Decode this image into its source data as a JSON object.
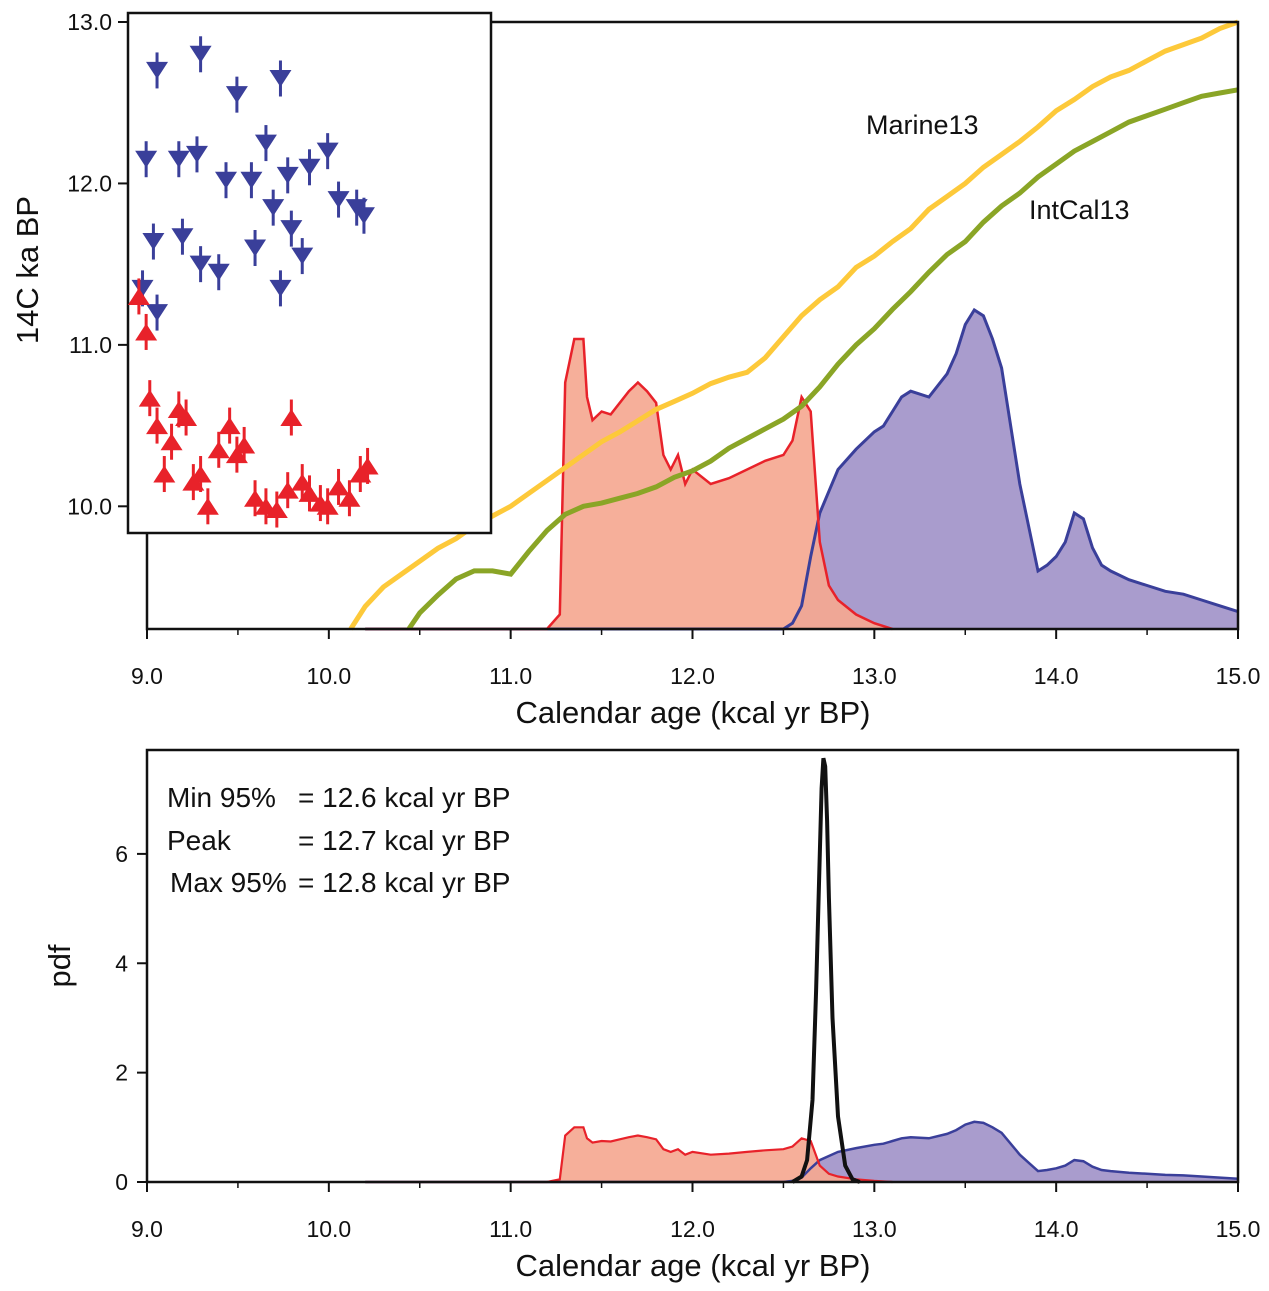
{
  "colors": {
    "marine": "#fdc93a",
    "intcal": "#8aa526",
    "red_line": "#e8222a",
    "red_fill": "#f5a891",
    "blue_line": "#3a3f9a",
    "blue_fill": "#a99ccd",
    "overlap_fill": "#9569ac",
    "black_pdf": "#111111"
  },
  "chart_data": [
    {
      "type": "line",
      "panel": "top",
      "xlabel": "Calendar age (kcal yr BP)",
      "ylabel": "14C ka BP",
      "xlim": [
        9.0,
        15.0
      ],
      "ylim": [
        9.24,
        13.0
      ],
      "x_ticks": [
        "9.0",
        "10.0",
        "11.0",
        "12.0",
        "13.0",
        "14.0",
        "15.0"
      ],
      "y_ticks": [
        "10.0",
        "11.0",
        "12.0",
        "13.0"
      ],
      "curve_labels": {
        "marine": "Marine13",
        "intcal": "IntCal13"
      },
      "series": [
        {
          "name": "Marine13",
          "x": [
            10.12,
            10.2,
            10.3,
            10.4,
            10.5,
            10.6,
            10.7,
            10.8,
            10.9,
            11.0,
            11.1,
            11.2,
            11.3,
            11.4,
            11.5,
            11.6,
            11.7,
            11.8,
            11.9,
            12.0,
            12.1,
            12.2,
            12.3,
            12.4,
            12.5,
            12.6,
            12.7,
            12.8,
            12.9,
            13.0,
            13.1,
            13.2,
            13.3,
            13.4,
            13.5,
            13.6,
            13.7,
            13.8,
            13.9,
            14.0,
            14.1,
            14.2,
            14.3,
            14.4,
            14.5,
            14.6,
            14.7,
            14.8,
            14.9,
            15.0
          ],
          "y": [
            9.24,
            9.38,
            9.5,
            9.58,
            9.66,
            9.74,
            9.8,
            9.88,
            9.94,
            10.0,
            10.08,
            10.16,
            10.24,
            10.32,
            10.4,
            10.46,
            10.53,
            10.6,
            10.65,
            10.7,
            10.76,
            10.8,
            10.83,
            10.92,
            11.05,
            11.18,
            11.28,
            11.36,
            11.48,
            11.55,
            11.64,
            11.72,
            11.84,
            11.92,
            12.0,
            12.1,
            12.18,
            12.26,
            12.35,
            12.45,
            12.52,
            12.6,
            12.66,
            12.7,
            12.76,
            12.82,
            12.86,
            12.9,
            12.96,
            13.0
          ]
        },
        {
          "name": "IntCal13",
          "x": [
            10.44,
            10.5,
            10.6,
            10.7,
            10.8,
            10.9,
            11.0,
            11.1,
            11.2,
            11.3,
            11.4,
            11.5,
            11.6,
            11.7,
            11.8,
            11.9,
            12.0,
            12.1,
            12.2,
            12.3,
            12.4,
            12.5,
            12.6,
            12.7,
            12.8,
            12.9,
            13.0,
            13.1,
            13.2,
            13.3,
            13.4,
            13.5,
            13.6,
            13.7,
            13.8,
            13.9,
            14.0,
            14.1,
            14.2,
            14.3,
            14.4,
            14.5,
            14.6,
            14.7,
            14.8,
            14.9,
            15.0
          ],
          "y": [
            9.24,
            9.34,
            9.45,
            9.55,
            9.6,
            9.6,
            9.58,
            9.72,
            9.85,
            9.95,
            10.0,
            10.02,
            10.05,
            10.08,
            10.12,
            10.18,
            10.22,
            10.28,
            10.36,
            10.42,
            10.48,
            10.54,
            10.62,
            10.74,
            10.88,
            11.0,
            11.1,
            11.22,
            11.33,
            11.45,
            11.56,
            11.64,
            11.76,
            11.86,
            11.94,
            12.04,
            12.12,
            12.2,
            12.26,
            12.32,
            12.38,
            12.42,
            12.46,
            12.5,
            12.54,
            12.56,
            12.58
          ]
        }
      ],
      "red_pdf": {
        "x": [
          10.2,
          11.2,
          11.27,
          11.3,
          11.35,
          11.4,
          11.42,
          11.45,
          11.5,
          11.55,
          11.6,
          11.65,
          11.7,
          11.75,
          11.8,
          11.84,
          11.88,
          11.92,
          11.96,
          12.0,
          12.1,
          12.2,
          12.3,
          12.4,
          12.5,
          12.55,
          12.6,
          12.65,
          12.7,
          12.75,
          12.8,
          12.9,
          13.0,
          13.1
        ],
        "y": [
          0.0,
          0.0,
          0.05,
          0.85,
          1.0,
          1.0,
          0.8,
          0.72,
          0.75,
          0.74,
          0.78,
          0.82,
          0.85,
          0.82,
          0.78,
          0.6,
          0.55,
          0.6,
          0.5,
          0.55,
          0.5,
          0.52,
          0.55,
          0.58,
          0.6,
          0.65,
          0.8,
          0.75,
          0.3,
          0.15,
          0.1,
          0.05,
          0.02,
          0.0
        ]
      },
      "blue_pdf": {
        "x": [
          10.2,
          12.5,
          12.55,
          12.6,
          12.65,
          12.7,
          12.8,
          12.9,
          13.0,
          13.05,
          13.1,
          13.15,
          13.2,
          13.3,
          13.4,
          13.45,
          13.5,
          13.55,
          13.6,
          13.65,
          13.7,
          13.8,
          13.85,
          13.9,
          13.95,
          14.0,
          14.05,
          14.1,
          14.15,
          14.2,
          14.25,
          14.3,
          14.4,
          14.5,
          14.6,
          14.7,
          14.8,
          14.9,
          15.0
        ],
        "y": [
          0.0,
          0.0,
          0.02,
          0.08,
          0.25,
          0.4,
          0.55,
          0.62,
          0.68,
          0.7,
          0.75,
          0.8,
          0.82,
          0.8,
          0.88,
          0.95,
          1.05,
          1.1,
          1.08,
          1.0,
          0.9,
          0.5,
          0.35,
          0.2,
          0.22,
          0.25,
          0.3,
          0.4,
          0.38,
          0.28,
          0.22,
          0.2,
          0.17,
          0.15,
          0.13,
          0.12,
          0.1,
          0.08,
          0.06
        ]
      }
    },
    {
      "type": "scatter",
      "panel": "inset",
      "series": [
        {
          "name": "",
          "marker": "down-triangle",
          "points": [
            [
              0.08,
              12.7
            ],
            [
              0.2,
              12.8
            ],
            [
              0.3,
              12.55
            ],
            [
              0.42,
              12.65
            ],
            [
              0.05,
              12.15
            ],
            [
              0.14,
              12.15
            ],
            [
              0.19,
              12.18
            ],
            [
              0.27,
              12.02
            ],
            [
              0.34,
              12.02
            ],
            [
              0.38,
              12.25
            ],
            [
              0.44,
              12.05
            ],
            [
              0.5,
              12.1
            ],
            [
              0.55,
              12.2
            ],
            [
              0.58,
              11.9
            ],
            [
              0.63,
              11.85
            ],
            [
              0.65,
              11.8
            ],
            [
              0.07,
              11.64
            ],
            [
              0.15,
              11.67
            ],
            [
              0.2,
              11.5
            ],
            [
              0.25,
              11.45
            ],
            [
              0.35,
              11.6
            ],
            [
              0.4,
              11.85
            ],
            [
              0.45,
              11.72
            ],
            [
              0.42,
              11.35
            ],
            [
              0.48,
              11.55
            ],
            [
              0.04,
              11.35
            ],
            [
              0.08,
              11.2
            ]
          ]
        },
        {
          "name": "",
          "marker": "up-triangle",
          "points": [
            [
              0.03,
              11.3
            ],
            [
              0.05,
              11.08
            ],
            [
              0.06,
              10.67
            ],
            [
              0.08,
              10.5
            ],
            [
              0.1,
              10.2
            ],
            [
              0.12,
              10.4
            ],
            [
              0.14,
              10.6
            ],
            [
              0.16,
              10.55
            ],
            [
              0.18,
              10.15
            ],
            [
              0.2,
              10.2
            ],
            [
              0.22,
              10.0
            ],
            [
              0.25,
              10.35
            ],
            [
              0.28,
              10.5
            ],
            [
              0.3,
              10.32
            ],
            [
              0.32,
              10.38
            ],
            [
              0.35,
              10.05
            ],
            [
              0.38,
              10.0
            ],
            [
              0.41,
              9.98
            ],
            [
              0.44,
              10.1
            ],
            [
              0.45,
              10.55
            ],
            [
              0.48,
              10.15
            ],
            [
              0.5,
              10.08
            ],
            [
              0.53,
              10.02
            ],
            [
              0.55,
              10.0
            ],
            [
              0.58,
              10.12
            ],
            [
              0.61,
              10.05
            ],
            [
              0.64,
              10.2
            ],
            [
              0.66,
              10.25
            ]
          ]
        }
      ]
    },
    {
      "type": "area",
      "panel": "bottom",
      "xlabel": "Calendar age (kcal yr BP)",
      "ylabel": "pdf",
      "xlim": [
        9.0,
        15.0
      ],
      "ylim": [
        0,
        7.9
      ],
      "x_ticks": [
        "9.0",
        "10.0",
        "11.0",
        "12.0",
        "13.0",
        "14.0",
        "15.0"
      ],
      "y_ticks": [
        "0",
        "2",
        "4",
        "6"
      ],
      "annotation": {
        "lines": [
          {
            "label": "Min 95%",
            "value": "= 12.6  kcal yr BP"
          },
          {
            "label": "Peak",
            "value": "= 12.7  kcal yr BP"
          },
          {
            "label": "Max 95%",
            "value": "= 12.8  kcal yr BP"
          }
        ]
      },
      "black_pdf": {
        "x": [
          12.55,
          12.6,
          12.63,
          12.66,
          12.68,
          12.7,
          12.71,
          12.72,
          12.73,
          12.74,
          12.75,
          12.77,
          12.8,
          12.84,
          12.88,
          12.92
        ],
        "y": [
          0.0,
          0.1,
          0.4,
          1.5,
          3.5,
          6.0,
          7.2,
          7.75,
          7.6,
          6.6,
          5.2,
          3.0,
          1.2,
          0.3,
          0.05,
          0.0
        ]
      },
      "red_pdf": {
        "x": [
          10.2,
          11.2,
          11.27,
          11.3,
          11.35,
          11.4,
          11.42,
          11.45,
          11.5,
          11.55,
          11.6,
          11.65,
          11.7,
          11.75,
          11.8,
          11.84,
          11.88,
          11.92,
          11.96,
          12.0,
          12.1,
          12.2,
          12.3,
          12.4,
          12.5,
          12.55,
          12.6,
          12.65,
          12.7,
          12.75,
          12.8,
          12.9,
          13.0,
          13.1
        ],
        "y": [
          0.0,
          0.0,
          0.05,
          0.85,
          1.0,
          1.0,
          0.8,
          0.72,
          0.75,
          0.74,
          0.78,
          0.82,
          0.85,
          0.82,
          0.78,
          0.6,
          0.55,
          0.6,
          0.5,
          0.55,
          0.5,
          0.52,
          0.55,
          0.58,
          0.6,
          0.65,
          0.8,
          0.75,
          0.3,
          0.15,
          0.1,
          0.05,
          0.02,
          0.0
        ]
      },
      "blue_pdf": {
        "x": [
          10.2,
          12.5,
          12.55,
          12.6,
          12.65,
          12.7,
          12.8,
          12.9,
          13.0,
          13.05,
          13.1,
          13.15,
          13.2,
          13.3,
          13.4,
          13.45,
          13.5,
          13.55,
          13.6,
          13.65,
          13.7,
          13.8,
          13.85,
          13.9,
          13.95,
          14.0,
          14.05,
          14.1,
          14.15,
          14.2,
          14.25,
          14.3,
          14.4,
          14.5,
          14.6,
          14.7,
          14.8,
          14.9,
          15.0
        ],
        "y": [
          0.0,
          0.0,
          0.02,
          0.08,
          0.25,
          0.4,
          0.55,
          0.62,
          0.68,
          0.7,
          0.75,
          0.8,
          0.82,
          0.8,
          0.88,
          0.95,
          1.05,
          1.1,
          1.08,
          1.0,
          0.9,
          0.5,
          0.35,
          0.2,
          0.22,
          0.25,
          0.3,
          0.4,
          0.38,
          0.28,
          0.22,
          0.2,
          0.17,
          0.15,
          0.13,
          0.12,
          0.1,
          0.08,
          0.06
        ]
      }
    }
  ]
}
